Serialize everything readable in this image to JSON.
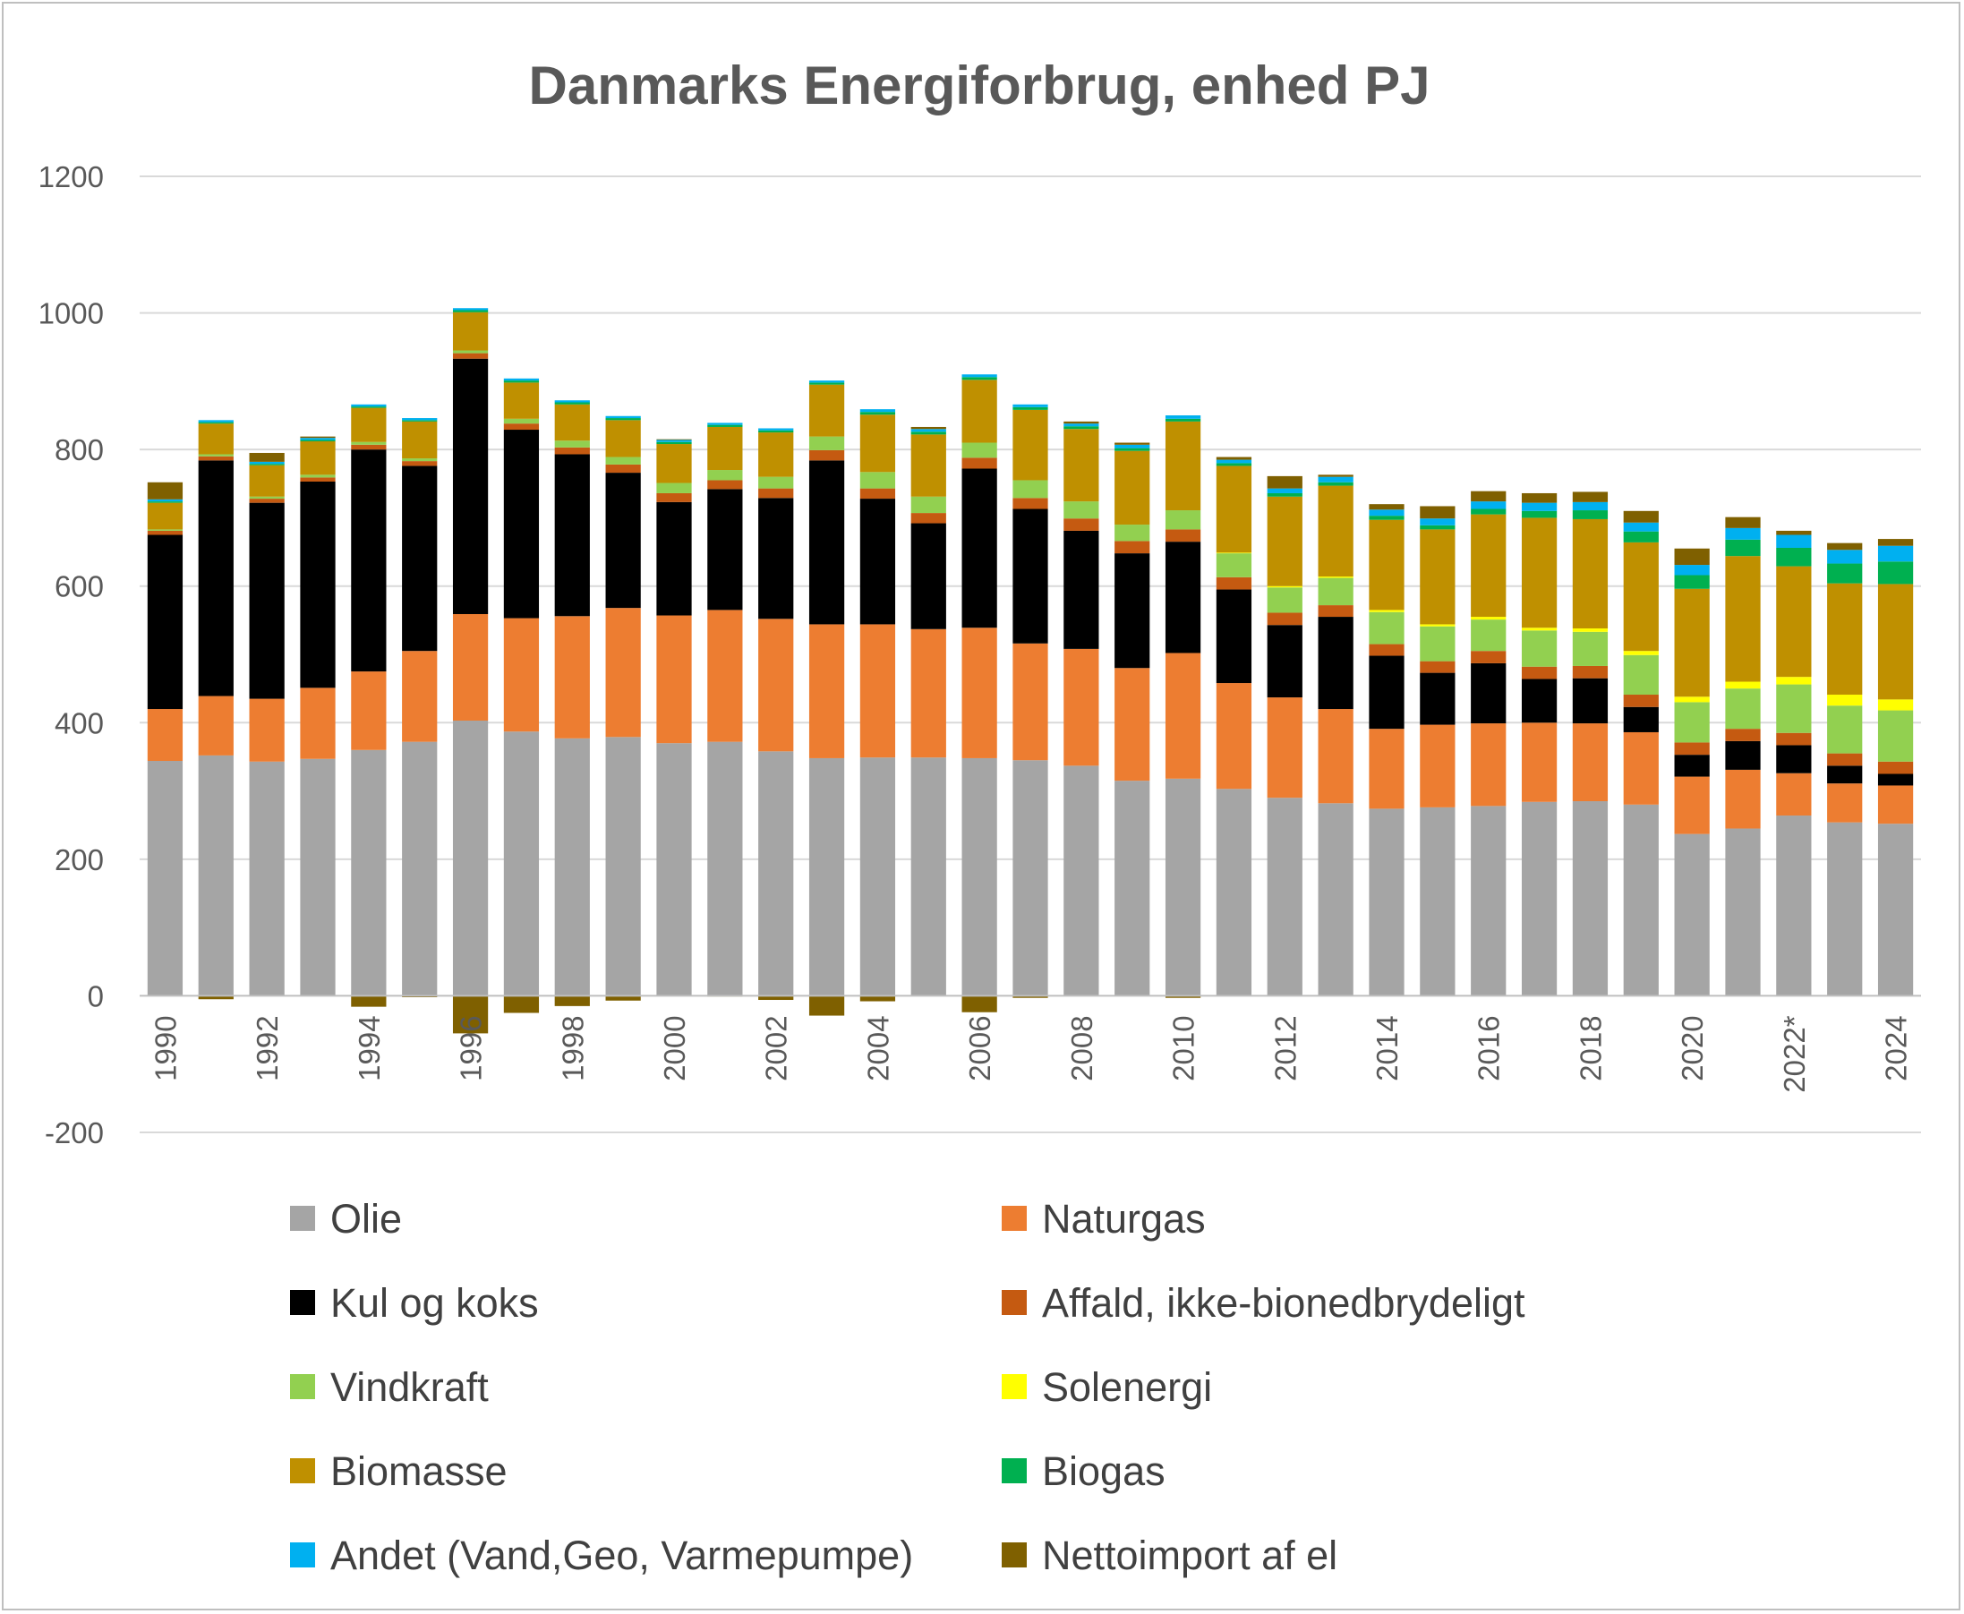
{
  "chart_data": {
    "type": "bar",
    "stacked": true,
    "title": "Danmarks Energiforbrug, enhed PJ",
    "xlabel": "",
    "ylabel": "",
    "ylim": [
      -200,
      1200
    ],
    "yticks": [
      -200,
      0,
      200,
      400,
      600,
      800,
      1000,
      1200
    ],
    "grid": true,
    "legend_position": "bottom",
    "categories": [
      "1990",
      "1991",
      "1992",
      "1993",
      "1994",
      "1995",
      "1996",
      "1997",
      "1998",
      "1999",
      "2000",
      "2001",
      "2002",
      "2003",
      "2004",
      "2005",
      "2006",
      "2007",
      "2008",
      "2009",
      "2010",
      "2011",
      "2012",
      "2013",
      "2014",
      "2015",
      "2016",
      "2017",
      "2018",
      "2019",
      "2020",
      "2021",
      "2022*",
      "2023",
      "2024"
    ],
    "xtick_labels": [
      "1990",
      "",
      "1992",
      "",
      "1994",
      "",
      "1996",
      "",
      "1998",
      "",
      "2000",
      "",
      "2002",
      "",
      "2004",
      "",
      "2006",
      "",
      "2008",
      "",
      "2010",
      "",
      "2012",
      "",
      "2014",
      "",
      "2016",
      "",
      "2018",
      "",
      "2020",
      "",
      "2022*",
      "",
      "2024"
    ],
    "series": [
      {
        "name": "Olie",
        "color": "#a5a5a5",
        "values": [
          344,
          352,
          343,
          347,
          360,
          372,
          403,
          387,
          377,
          379,
          370,
          372,
          358,
          348,
          349,
          349,
          348,
          345,
          337,
          315,
          318,
          303,
          290,
          282,
          274,
          276,
          278,
          284,
          285,
          280,
          237,
          245,
          264,
          254,
          252
        ]
      },
      {
        "name": "Naturgas",
        "color": "#ed7d31",
        "values": [
          76,
          87,
          92,
          104,
          115,
          133,
          156,
          166,
          179,
          189,
          187,
          193,
          194,
          196,
          195,
          188,
          191,
          171,
          171,
          165,
          184,
          155,
          147,
          138,
          117,
          121,
          121,
          116,
          114,
          106,
          84,
          86,
          62,
          57,
          56
        ]
      },
      {
        "name": "Kul og koks",
        "color": "#000000",
        "values": [
          255,
          345,
          287,
          302,
          325,
          271,
          374,
          276,
          237,
          198,
          166,
          177,
          177,
          240,
          184,
          155,
          233,
          197,
          173,
          168,
          163,
          137,
          106,
          135,
          107,
          76,
          88,
          64,
          66,
          37,
          32,
          42,
          41,
          26,
          17
        ]
      },
      {
        "name": "Affald, ikke-bionedbrydeligt",
        "color": "#c55a11",
        "values": [
          6,
          6,
          6,
          6,
          7,
          7,
          8,
          9,
          10,
          12,
          13,
          13,
          14,
          15,
          15,
          15,
          16,
          16,
          18,
          18,
          18,
          18,
          18,
          17,
          17,
          17,
          18,
          18,
          18,
          18,
          18,
          18,
          18,
          18,
          18
        ]
      },
      {
        "name": "Vindkraft",
        "color": "#92d050",
        "values": [
          2,
          3,
          3,
          4,
          4,
          4,
          4,
          7,
          10,
          11,
          15,
          15,
          17,
          20,
          24,
          24,
          22,
          26,
          25,
          24,
          28,
          35,
          37,
          40,
          47,
          51,
          46,
          53,
          50,
          58,
          59,
          59,
          71,
          70,
          75
        ]
      },
      {
        "name": "Solenergi",
        "color": "#ffff00",
        "values": [
          0,
          0,
          0,
          0,
          0,
          0,
          0,
          0,
          0,
          0,
          0,
          0,
          0,
          0,
          0,
          0,
          0,
          0,
          0,
          0,
          0,
          1,
          2,
          2,
          3,
          3,
          4,
          4,
          5,
          6,
          8,
          10,
          11,
          16,
          16
        ]
      },
      {
        "name": "Biomasse",
        "color": "#bf9000",
        "values": [
          39,
          45,
          46,
          49,
          50,
          54,
          56,
          53,
          53,
          54,
          57,
          63,
          65,
          76,
          84,
          91,
          92,
          103,
          106,
          108,
          130,
          127,
          131,
          133,
          132,
          139,
          150,
          161,
          160,
          159,
          158,
          184,
          162,
          163,
          169
        ]
      },
      {
        "name": "Biogas",
        "color": "#00b050",
        "values": [
          2,
          2,
          2,
          2,
          2,
          2,
          3,
          3,
          3,
          3,
          3,
          3,
          3,
          3,
          4,
          4,
          4,
          4,
          4,
          4,
          4,
          4,
          5,
          5,
          6,
          6,
          8,
          10,
          13,
          16,
          20,
          24,
          27,
          29,
          33
        ]
      },
      {
        "name": "Andet (Vand,Geo, Varmepumpe)",
        "color": "#00b0f0",
        "values": [
          3,
          3,
          3,
          3,
          3,
          3,
          3,
          3,
          3,
          3,
          3,
          3,
          3,
          3,
          4,
          4,
          4,
          4,
          4,
          5,
          5,
          5,
          7,
          8,
          9,
          10,
          11,
          12,
          12,
          13,
          15,
          17,
          19,
          20,
          23
        ]
      },
      {
        "name": "Nettoimport af el",
        "color": "#7f6000",
        "values": [
          25,
          -5,
          13,
          2,
          -16,
          -2,
          -55,
          -25,
          -15,
          -7,
          1,
          -1,
          -6,
          -29,
          -8,
          3,
          -24,
          -3,
          3,
          3,
          -3,
          4,
          18,
          3,
          8,
          18,
          15,
          14,
          15,
          17,
          24,
          16,
          6,
          10,
          10
        ]
      }
    ]
  }
}
